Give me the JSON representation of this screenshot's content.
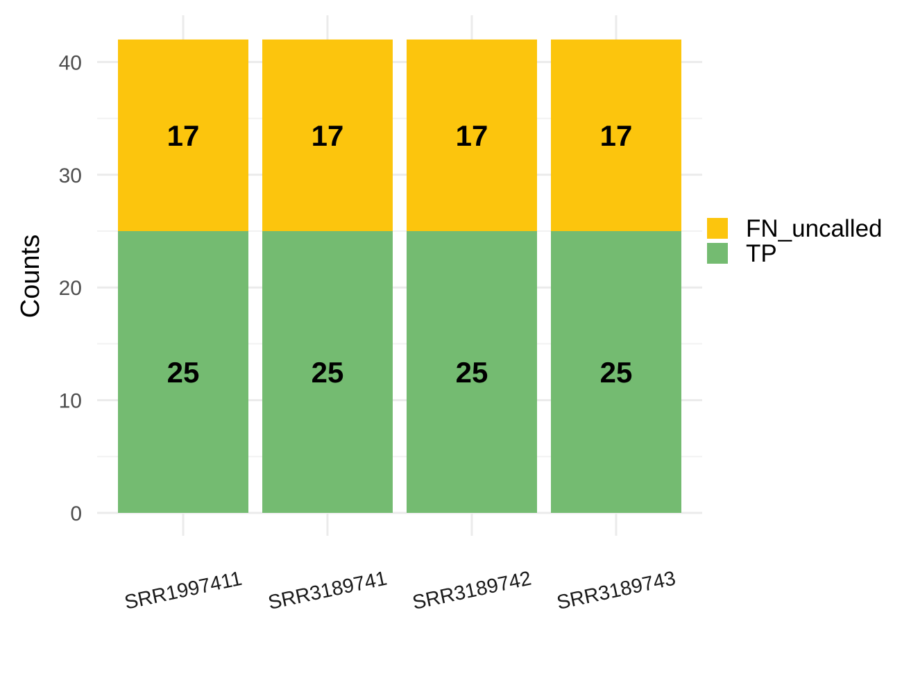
{
  "chart_data": {
    "type": "bar",
    "stacked": true,
    "categories": [
      "SRR1997411",
      "SRR3189741",
      "SRR3189742",
      "SRR3189743"
    ],
    "series": [
      {
        "name": "TP",
        "values": [
          25,
          25,
          25,
          25
        ],
        "color": "#74BB71"
      },
      {
        "name": "FN_uncalled",
        "values": [
          17,
          17,
          17,
          17
        ],
        "color": "#FCC50D"
      }
    ],
    "legend_order": [
      "FN_uncalled",
      "TP"
    ],
    "title": "",
    "xlabel": "",
    "ylabel": "Counts",
    "ylim": [
      0,
      42
    ],
    "yticks": [
      0,
      10,
      20,
      30,
      40
    ],
    "grid": true,
    "legend_position": "right"
  }
}
